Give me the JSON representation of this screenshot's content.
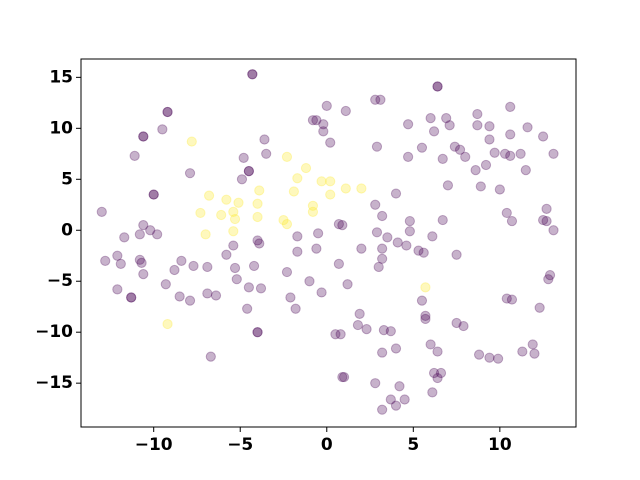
{
  "chart_data": {
    "type": "scatter",
    "xlim": [
      -14.2,
      14.4
    ],
    "ylim": [
      -19.3,
      16.8
    ],
    "xticks": [
      {
        "value": -10,
        "label": "−10"
      },
      {
        "value": -5,
        "label": "−5"
      },
      0,
      5,
      10
    ],
    "yticks": [
      {
        "value": -15,
        "label": "−15"
      },
      {
        "value": -10,
        "label": "−10"
      },
      {
        "value": -5,
        "label": "−5"
      },
      0,
      5,
      10,
      15
    ],
    "grid": false,
    "alpha": 0.3,
    "series": [
      {
        "color": "#440154",
        "x": [
          -4.3,
          -4.3,
          6.4,
          6.4,
          -9.2,
          -9.2,
          -10.6,
          -10.6,
          -9.5,
          -11.1,
          -7.9,
          -3.6,
          -3.5,
          -4.8,
          -4.5,
          -4.5,
          -4.9,
          -10.0,
          -10.0,
          -13.0,
          -10.6,
          -10.8,
          -10.2,
          -9.8,
          -11.7,
          -12.8,
          -12.1,
          -11.9,
          -10.8,
          -10.7,
          -10.6,
          -12.1,
          -11.3,
          -11.3,
          -9.3,
          -8.8,
          -8.4,
          -7.7,
          -8.5,
          -7.9,
          -6.9,
          -6.9,
          -6.4,
          -5.8,
          -5.4,
          -5.3,
          -5.2,
          -4.5,
          -4.6,
          -4.0,
          -3.9,
          -4.2,
          -3.8,
          -4.0,
          -4.0,
          -6.7,
          -2.3,
          -2.1,
          -1.8,
          -1.7,
          -1.7,
          -0.6,
          -0.5,
          -1.0,
          -0.3,
          0.7,
          1.2,
          0.5,
          0.8,
          0.9,
          1.0,
          -0.6,
          0.0,
          1.1,
          -0.2,
          -0.2,
          0.2,
          -0.8,
          2.8,
          3.1,
          2.9,
          0.7,
          0.9,
          2.8,
          3.2,
          2.9,
          3.5,
          4.0,
          2.0,
          3.2,
          3.2,
          3.0,
          4.1,
          4.6,
          4.8,
          4.8,
          5.3,
          5.6,
          6.1,
          6.7,
          4.7,
          4.7,
          5.5,
          6.0,
          6.2,
          6.9,
          7.1,
          6.7,
          7.4,
          7.7,
          8.0,
          7.0,
          8.7,
          8.7,
          9.4,
          9.4,
          8.6,
          9.2,
          8.9,
          10.0,
          9.7,
          10.3,
          10.6,
          10.6,
          10.6,
          11.2,
          11.6,
          11.5,
          12.5,
          13.1,
          10.4,
          10.7,
          12.7,
          12.5,
          12.7,
          13.1,
          7.5,
          12.9,
          12.8,
          10.4,
          10.7,
          12.3,
          5.5,
          5.7,
          5.7,
          1.9,
          1.8,
          2.3,
          3.3,
          3.7,
          3.2,
          4.0,
          7.5,
          7.9,
          6.0,
          6.4,
          8.8,
          9.4,
          9.9,
          11.3,
          11.9,
          12.0,
          2.8,
          3.2,
          3.7,
          4.0,
          4.2,
          4.5,
          6.1,
          6.2,
          6.4,
          6.6
        ],
        "values": [
          15.3,
          15.3,
          14.1,
          14.1,
          11.6,
          11.6,
          9.2,
          9.2,
          9.9,
          7.3,
          5.6,
          8.9,
          7.5,
          7.1,
          5.8,
          5.8,
          5.0,
          3.5,
          3.5,
          1.8,
          0.5,
          -0.4,
          0.0,
          -0.4,
          -0.7,
          -3.0,
          -2.5,
          -3.3,
          -2.9,
          -3.2,
          -4.3,
          -5.8,
          -6.6,
          -6.6,
          -5.3,
          -3.9,
          -3.0,
          -3.5,
          -6.5,
          -6.9,
          -3.6,
          -6.2,
          -6.4,
          -2.4,
          -1.5,
          -3.7,
          -4.8,
          -5.6,
          -7.7,
          -1.0,
          -1.3,
          -3.5,
          -5.7,
          -10.0,
          -10.0,
          -12.4,
          -4.1,
          -6.6,
          -7.7,
          -2.1,
          -0.6,
          -1.8,
          -0.3,
          -5.0,
          -6.1,
          -3.3,
          -5.3,
          -10.2,
          -10.2,
          -14.4,
          -14.4,
          10.8,
          12.2,
          11.7,
          10.4,
          9.7,
          8.6,
          10.8,
          12.8,
          12.8,
          8.2,
          0.6,
          0.5,
          2.5,
          1.4,
          -0.2,
          -0.7,
          3.6,
          -1.8,
          -1.8,
          -2.8,
          -3.6,
          -1.2,
          -1.5,
          0.9,
          -0.1,
          -2.0,
          -2.2,
          -0.6,
          1.0,
          10.4,
          7.2,
          8.1,
          11.0,
          9.7,
          11.0,
          10.3,
          7.0,
          8.2,
          7.9,
          7.2,
          4.4,
          10.3,
          11.4,
          10.2,
          8.9,
          5.9,
          6.4,
          4.3,
          4.0,
          7.6,
          7.5,
          12.1,
          9.4,
          7.3,
          7.5,
          10.1,
          5.9,
          9.2,
          7.5,
          1.7,
          0.9,
          2.1,
          1.0,
          0.9,
          0.0,
          -2.4,
          -4.4,
          -4.8,
          -6.7,
          -6.8,
          -7.6,
          -6.9,
          -8.4,
          -8.7,
          -8.2,
          -9.3,
          -9.7,
          -9.8,
          -9.9,
          -12.0,
          -11.6,
          -9.1,
          -9.4,
          -11.2,
          -11.9,
          -12.2,
          -12.5,
          -12.6,
          -11.9,
          -11.2,
          -12.1,
          -15.0,
          -17.6,
          -16.6,
          -17.2,
          -15.3,
          -16.6,
          -15.9,
          -14.0,
          -14.5,
          -14.0
        ]
      },
      {
        "color": "#fde725",
        "x": [
          -7.8,
          -2.3,
          -1.2,
          -1.7,
          -6.8,
          -5.8,
          -5.1,
          -3.9,
          -4.0,
          -1.9,
          -0.8,
          -0.3,
          0.2,
          0.2,
          1.1,
          2.0,
          -7.3,
          -6.1,
          -5.4,
          -5.3,
          -4.0,
          -2.5,
          -2.3,
          -0.8,
          -7.0,
          -5.4,
          5.7,
          -9.2
        ],
        "values": [
          8.7,
          7.2,
          6.1,
          5.1,
          3.4,
          3.0,
          2.7,
          3.9,
          2.6,
          3.8,
          2.4,
          4.8,
          4.8,
          3.5,
          4.1,
          4.1,
          1.7,
          1.5,
          1.8,
          1.1,
          1.3,
          1.0,
          0.6,
          1.8,
          -0.4,
          -0.1,
          -5.6,
          -9.2
        ]
      }
    ]
  }
}
